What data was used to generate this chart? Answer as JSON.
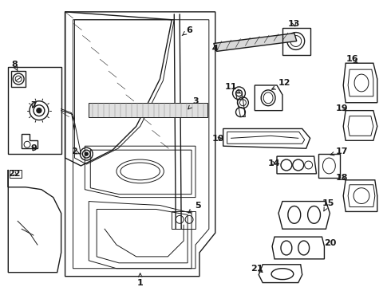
{
  "bg_color": "#ffffff",
  "line_color": "#1a1a1a",
  "fig_width": 4.9,
  "fig_height": 3.6,
  "dpi": 100,
  "label_fs": 8,
  "label_fw": "bold"
}
